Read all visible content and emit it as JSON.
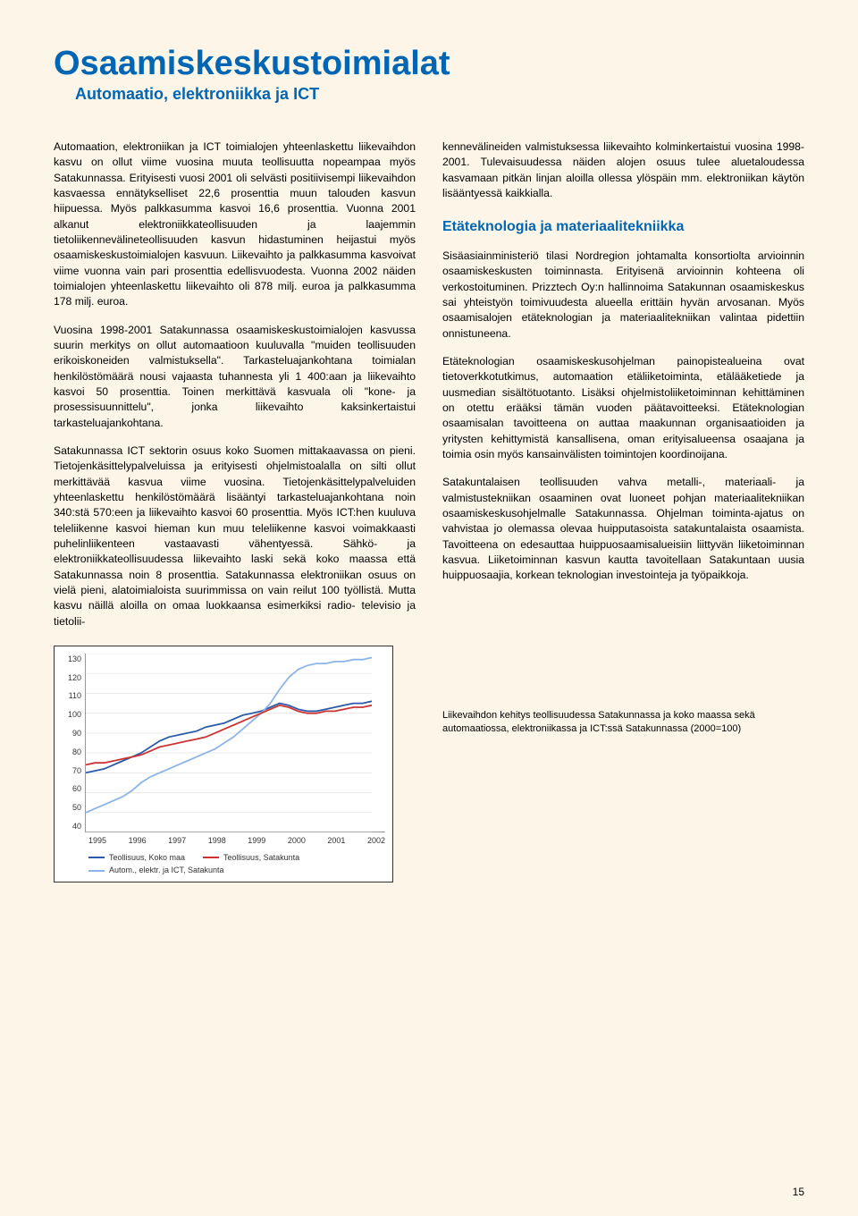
{
  "title": "Osaamiskeskustoimialat",
  "subtitle": "Automaatio, elektroniikka ja ICT",
  "left_paragraphs": [
    "Automaation, elektroniikan ja ICT toimialojen yhteenlaskettu liikevaihdon kasvu on ollut viime vuosina muuta teollisuutta nopeampaa myös Satakunnassa. Erityisesti vuosi 2001 oli selvästi positiivisempi liikevaihdon kasvaessa ennätykselliset 22,6 prosenttia muun talouden kasvun hiipuessa. Myös palkkasumma kasvoi 16,6 prosenttia. Vuonna 2001 alkanut elektroniikkateollisuuden ja laajemmin tietoliikennevälineteollisuuden kasvun hidastuminen heijastui myös osaamiskeskustoimialojen kasvuun. Liikevaihto ja palkkasumma kasvoivat viime vuonna vain pari prosenttia edellisvuodesta. Vuonna 2002 näiden toimialojen yhteenlaskettu liikevaihto oli 878 milj. euroa ja palkkasumma 178 milj. euroa.",
    "Vuosina 1998-2001 Satakunnassa osaamiskeskustoimialojen kasvussa suurin merkitys on ollut automaatioon kuuluvalla \"muiden teollisuuden erikoiskoneiden valmistuksella\". Tarkasteluajankohtana toimialan henkilöstömäärä nousi vajaasta tuhannesta yli 1 400:aan ja liikevaihto kasvoi 50 prosenttia. Toinen merkittävä kasvuala oli \"kone- ja prosessisuunnittelu\", jonka liikevaihto kaksinkertaistui tarkasteluajankohtana.",
    "Satakunnassa ICT sektorin osuus koko Suomen mittakaavassa on pieni. Tietojenkäsittelypalveluissa ja erityisesti ohjelmistoalalla on silti ollut merkittävää kasvua viime vuosina. Tietojenkäsittelypalveluiden yhteenlaskettu henkilöstömäärä lisääntyi tarkasteluajankohtana noin 340:stä 570:een ja liikevaihto kasvoi 60 prosenttia. Myös ICT:hen kuuluva teleliikenne kasvoi hieman kun muu teleliikenne kasvoi voimakkaasti puhelinliikenteen vastaavasti vähentyessä. Sähkö- ja elektroniikkateollisuudessa liikevaihto laski sekä koko maassa että Satakunnassa noin 8 prosenttia. Satakunnassa elektroniikan osuus on vielä pieni, alatoimialoista suurimmissa on vain reilut 100 työllistä. Mutta kasvu näillä aloilla on omaa luokkaansa esimerkiksi radio- televisio ja tietolii-"
  ],
  "right_paragraphs_top": [
    "kennevälineiden valmistuksessa liikevaihto kolminkertaistui vuosina 1998-2001. Tulevaisuudessa näiden alojen osuus tulee aluetaloudessa kasvamaan pitkän linjan aloilla ollessa ylöspäin mm. elektroniikan käytön lisääntyessä kaikkialla."
  ],
  "section_heading": "Etäteknologia ja materiaalitekniikka",
  "right_paragraphs_section": [
    "Sisäasiainministeriö tilasi Nordregion johtamalta konsortiolta arvioinnin osaamiskeskusten toiminnasta. Erityisenä arvioinnin kohteena oli verkostoituminen. Prizztech Oy:n hallinnoima Satakunnan osaamiskeskus sai yhteistyön toimivuudesta alueella erittäin hyvän arvosanan. Myös osaamisalojen etäteknologian ja materiaalitekniikan valintaa pidettiin onnistuneena.",
    "Etäteknologian osaamiskeskusohjelman painopistealueina ovat tietoverkkotutkimus, automaation etäliiketoiminta, etälääketiede ja uusmedian sisältötuotanto. Lisäksi ohjelmistoliiketoiminnan kehittäminen on otettu erääksi tämän vuoden päätavoitteeksi. Etäteknologian osaamisalan tavoitteena on auttaa maakunnan organisaatioiden ja yritysten kehittymistä kansallisena, oman erityisalueensa osaajana ja toimia osin myös kansainvälisten toimintojen koordinoijana.",
    "Satakuntalaisen teollisuuden vahva metalli-, materiaali- ja valmistustekniikan osaaminen ovat luoneet pohjan materiaalitekniikan osaamiskeskusohjelmalle Satakunnassa. Ohjelman toiminta-ajatus on vahvistaa jo olemassa olevaa huipputasoista satakuntalaista osaamista. Tavoitteena on edesauttaa huippuosaamisalueisiin liittyvän liiketoiminnan kasvua. Liiketoiminnan kasvun kautta tavoitellaan Satakuntaan uusia huippuosaajia, korkean teknologian investointeja ja työpaikkoja."
  ],
  "chart": {
    "type": "line",
    "background_color": "#ffffff",
    "ylim": [
      40,
      130
    ],
    "ytick_step": 10,
    "yticks": [
      130,
      120,
      110,
      100,
      90,
      80,
      70,
      60,
      50,
      40
    ],
    "xlabels": [
      "1995",
      "1996",
      "1997",
      "1998",
      "1999",
      "2000",
      "2001",
      "2002"
    ],
    "series": [
      {
        "name": "Teollisuus, Koko maa",
        "color": "#2a5aa8",
        "stroke_width": 1.8,
        "values": [
          70,
          71,
          72,
          74,
          76,
          78,
          80,
          83,
          86,
          88,
          89,
          90,
          91,
          93,
          94,
          95,
          97,
          99,
          100,
          101,
          103,
          105,
          104,
          102,
          101,
          101,
          102,
          103,
          104,
          105,
          105,
          106
        ]
      },
      {
        "name": "Autom., elektr. ja ICT, Satakunta",
        "color": "#8cb4e8",
        "stroke_width": 1.8,
        "values": [
          50,
          52,
          54,
          56,
          58,
          61,
          65,
          68,
          70,
          72,
          74,
          76,
          78,
          80,
          82,
          85,
          88,
          92,
          96,
          100,
          105,
          112,
          118,
          122,
          124,
          125,
          125,
          126,
          126,
          127,
          127,
          128
        ]
      },
      {
        "name": "Teollisuus, Satakunta",
        "color": "#cc3333",
        "stroke_width": 1.8,
        "values": [
          74,
          75,
          75,
          76,
          77,
          78,
          79,
          81,
          83,
          84,
          85,
          86,
          87,
          88,
          90,
          92,
          94,
          96,
          98,
          100,
          102,
          104,
          103,
          101,
          100,
          100,
          101,
          101,
          102,
          103,
          103,
          104
        ]
      }
    ],
    "legend": {
      "rows": [
        [
          {
            "label": "Teollisuus, Koko maa",
            "color": "#2a5aa8"
          },
          {
            "label": "Teollisuus, Satakunta",
            "color": "#cc3333"
          }
        ],
        [
          {
            "label": "Autom., elektr. ja ICT, Satakunta",
            "color": "#8cb4e8"
          }
        ]
      ]
    }
  },
  "chart_caption": "Liikevaihdon kehitys teollisuudessa Satakunnassa ja koko maassa sekä automaatiossa, elektroniikassa ja ICT:ssä Satakunnassa (2000=100)",
  "page_number": "15"
}
